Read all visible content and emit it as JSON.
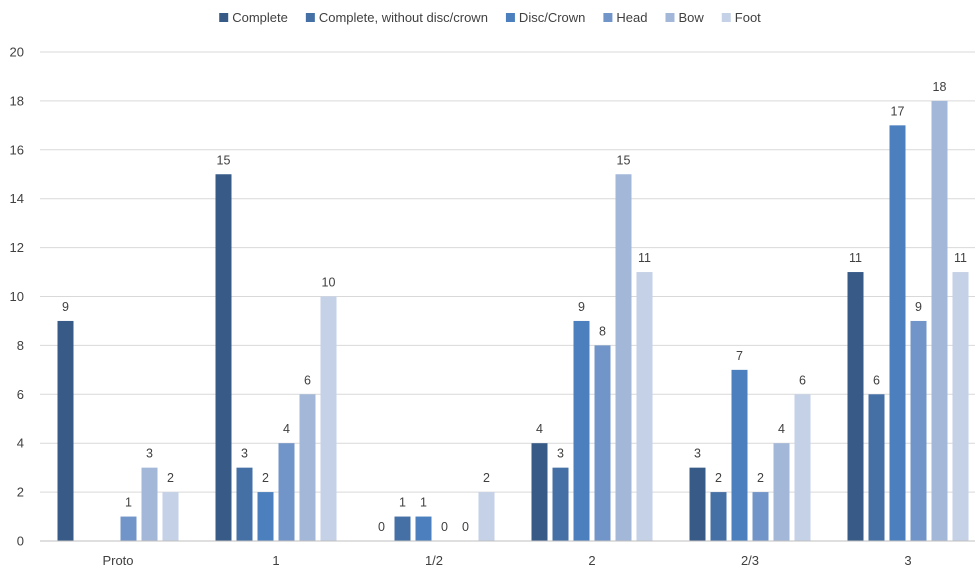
{
  "chart_data": {
    "type": "bar",
    "categories": [
      "Proto",
      "1",
      "1/2",
      "2",
      "2/3",
      "3"
    ],
    "series": [
      {
        "name": "Complete",
        "color": "#375a87",
        "values": [
          9,
          15,
          0,
          4,
          3,
          11
        ]
      },
      {
        "name": "Complete, without disc/crown",
        "color": "#4570a6",
        "values": [
          null,
          3,
          1,
          3,
          2,
          6
        ]
      },
      {
        "name": "Disc/Crown",
        "color": "#4b7fbd",
        "values": [
          null,
          2,
          1,
          9,
          7,
          17
        ]
      },
      {
        "name": "Head",
        "color": "#7195c9",
        "values": [
          1,
          4,
          0,
          8,
          2,
          9
        ]
      },
      {
        "name": "Bow",
        "color": "#a3b7d8",
        "values": [
          3,
          6,
          0,
          15,
          4,
          18
        ]
      },
      {
        "name": "Foot",
        "color": "#c5d1e7",
        "values": [
          2,
          10,
          2,
          11,
          6,
          11
        ]
      }
    ],
    "ylim": [
      0,
      20
    ],
    "yticks": [
      0,
      2,
      4,
      6,
      8,
      10,
      12,
      14,
      16,
      18,
      20
    ],
    "grid": true,
    "legend_position": "top",
    "data_labels": true
  }
}
